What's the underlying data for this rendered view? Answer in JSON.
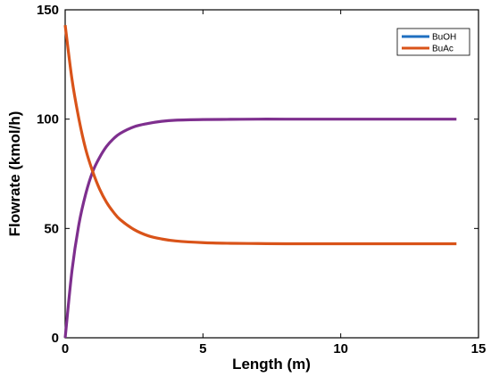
{
  "chart_data": {
    "type": "line",
    "title": "",
    "xlabel": "Length (m)",
    "ylabel": "Flowrate (kmol/h)",
    "xlim": [
      0,
      15
    ],
    "ylim": [
      0,
      150
    ],
    "xticks": [
      "0",
      "5",
      "10",
      "15"
    ],
    "yticks": [
      "0",
      "50",
      "100",
      "150"
    ],
    "grid": false,
    "legend_position": "top-right",
    "legend": [
      {
        "label": "BuOH",
        "color": "#1f6fc0"
      },
      {
        "label": "BuAc",
        "color": "#d95319"
      }
    ],
    "series": [
      {
        "color": "#7e2f8e",
        "x": [
          0,
          0.25,
          0.5,
          0.75,
          1,
          1.25,
          1.5,
          1.75,
          2,
          2.5,
          3,
          3.5,
          4,
          5,
          6,
          7,
          8,
          10,
          12,
          14.2
        ],
        "y": [
          0,
          31,
          52,
          66,
          76,
          82.5,
          87.5,
          91,
          93.5,
          96.5,
          98,
          99,
          99.5,
          99.8,
          99.9,
          100,
          100,
          100,
          100,
          100
        ]
      },
      {
        "color": "#d95319",
        "x": [
          0,
          0.25,
          0.5,
          0.75,
          1,
          1.25,
          1.5,
          1.75,
          2,
          2.5,
          3,
          3.5,
          4,
          5,
          6,
          7,
          8,
          10,
          12,
          14.2
        ],
        "y": [
          143,
          118,
          100,
          86,
          76,
          68,
          62,
          57.5,
          54,
          49.5,
          46.7,
          45.2,
          44.3,
          43.5,
          43.2,
          43.1,
          43,
          43,
          43,
          43
        ]
      }
    ]
  }
}
